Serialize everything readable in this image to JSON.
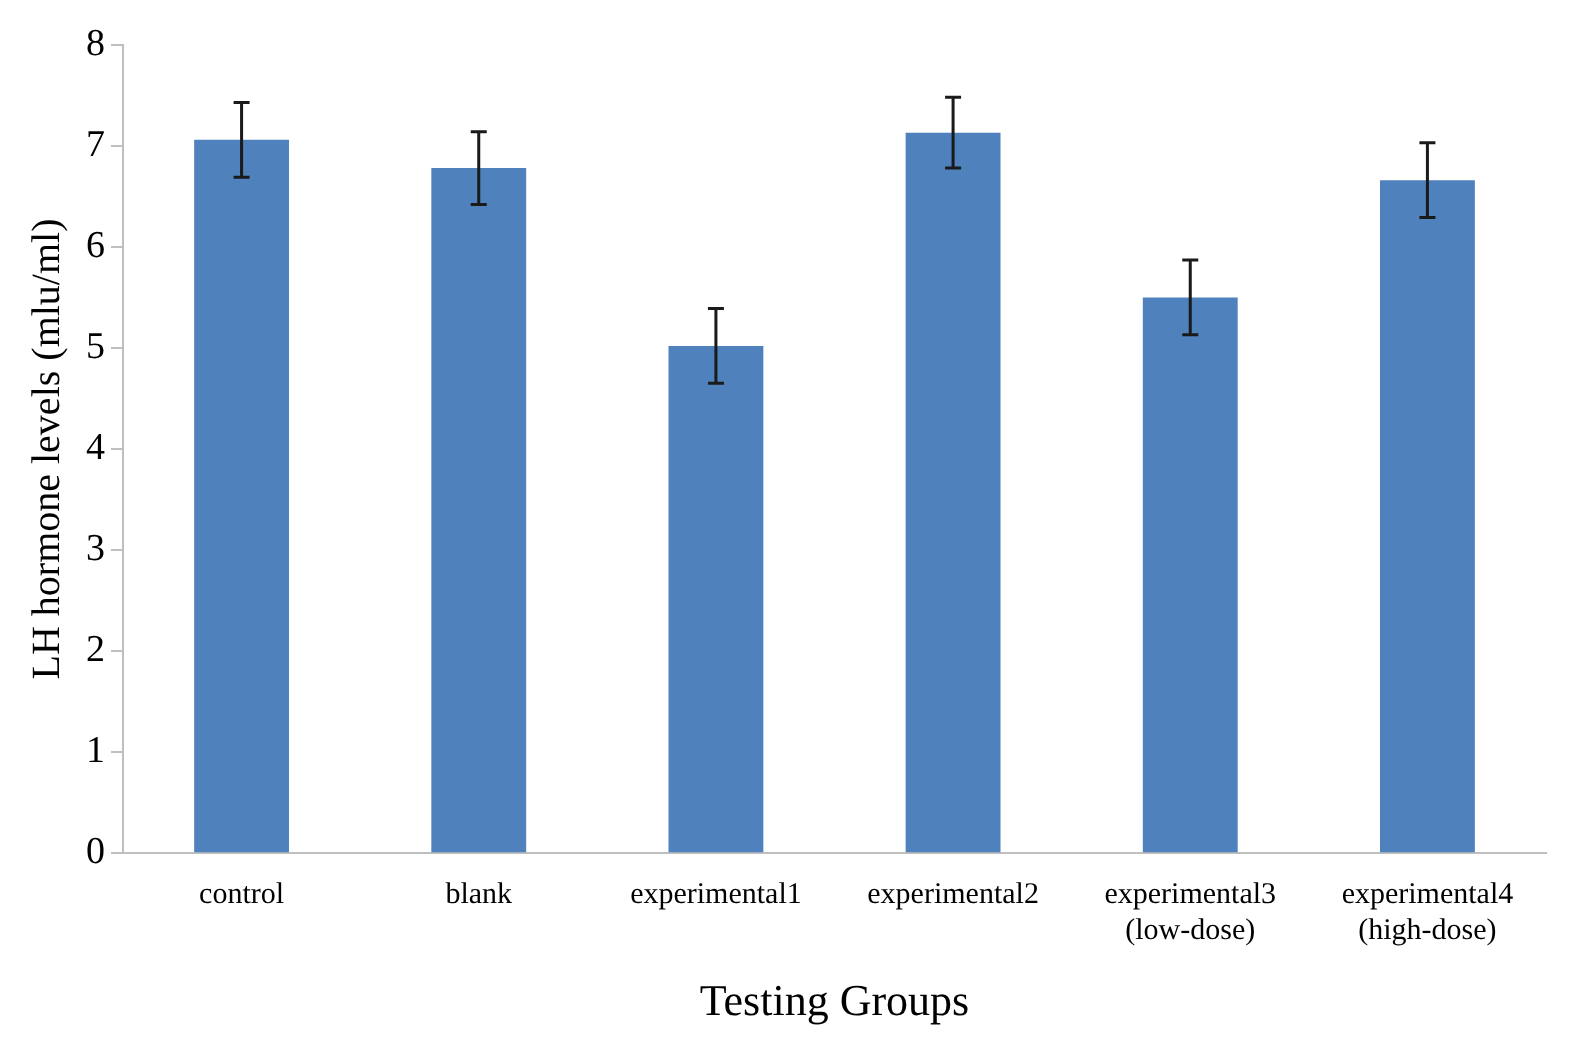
{
  "chart_data": {
    "type": "bar",
    "xlabel": "Testing Groups",
    "ylabel": "LH hormone levels (mlu/ml)",
    "categories": [
      "control",
      "blank",
      "experimental1",
      "experimental2",
      "experimental3\n(low-dose)",
      "experimental4\n(high-dose)"
    ],
    "values": [
      7.06,
      6.78,
      5.02,
      7.13,
      5.5,
      6.66
    ],
    "errors": [
      0.37,
      0.36,
      0.37,
      0.35,
      0.37,
      0.37
    ],
    "color": "#4f81bd",
    "ylim": [
      0,
      8
    ],
    "yticks": [
      0,
      1,
      2,
      3,
      4,
      5,
      6,
      7,
      8
    ],
    "grid": false,
    "legend": false
  }
}
